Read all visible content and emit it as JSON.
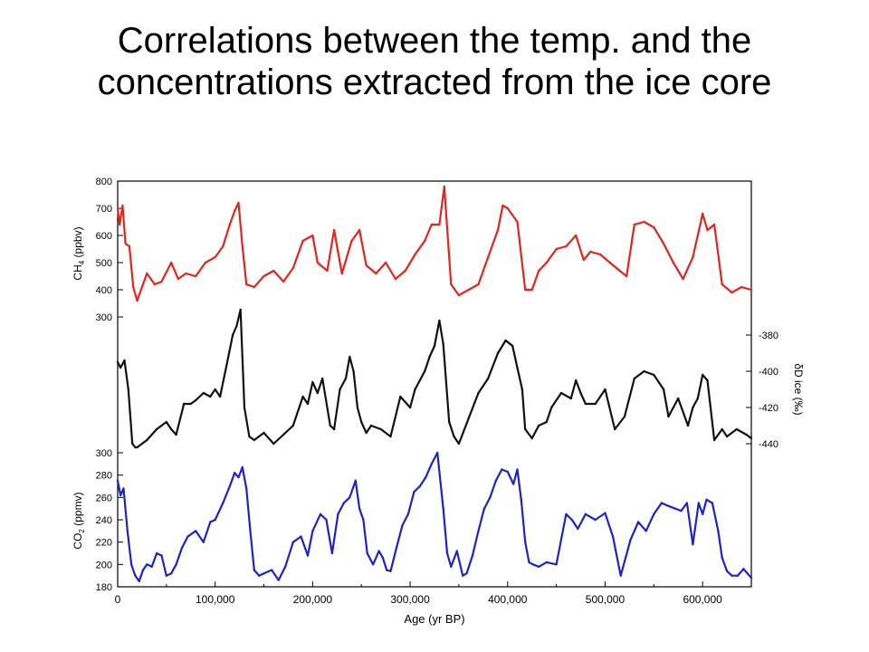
{
  "slide": {
    "title": "Correlations between the temp. and the concentrations extracted from the ice core"
  },
  "chart_data": [
    {
      "type": "line",
      "name": "ch4-panel",
      "ylabel_main": "CH",
      "ylabel_sub": "4",
      "ylabel_unit": " (ppbv)",
      "ylim": [
        300,
        800
      ],
      "yticks": [
        800,
        700,
        600,
        500,
        400,
        300
      ],
      "color": "#e8231e",
      "x": [
        0,
        2,
        5,
        8,
        12,
        16,
        20,
        25,
        30,
        38,
        45,
        55,
        62,
        70,
        80,
        90,
        100,
        108,
        115,
        120,
        124,
        128,
        132,
        140,
        150,
        160,
        170,
        180,
        190,
        200,
        205,
        215,
        222,
        230,
        240,
        248,
        255,
        265,
        275,
        285,
        295,
        305,
        315,
        322,
        330,
        335,
        342,
        350,
        360,
        370,
        380,
        390,
        395,
        400,
        410,
        418,
        425,
        432,
        440,
        450,
        460,
        470,
        478,
        485,
        495,
        505,
        515,
        522,
        530,
        540,
        550,
        560,
        570,
        580,
        590,
        600,
        605,
        612,
        620,
        630,
        640,
        650
      ],
      "y": [
        700,
        640,
        710,
        570,
        560,
        410,
        360,
        410,
        460,
        420,
        430,
        500,
        440,
        460,
        450,
        500,
        520,
        560,
        640,
        690,
        720,
        560,
        420,
        410,
        450,
        470,
        430,
        480,
        580,
        600,
        500,
        470,
        620,
        460,
        580,
        620,
        490,
        460,
        500,
        440,
        470,
        530,
        580,
        640,
        640,
        780,
        420,
        380,
        400,
        420,
        520,
        620,
        710,
        700,
        650,
        400,
        400,
        470,
        500,
        550,
        560,
        600,
        510,
        540,
        530,
        500,
        470,
        450,
        640,
        650,
        630,
        570,
        500,
        440,
        520,
        680,
        620,
        640,
        420,
        390,
        410,
        400
      ],
      "ylim_right": null
    },
    {
      "type": "line",
      "name": "deltaD-panel",
      "ylabel_right": "δD ice (‰)",
      "ylim": [
        -450,
        -370
      ],
      "yticks": [
        -380,
        -400,
        -420,
        -440
      ],
      "color": "#111111",
      "x": [
        0,
        3,
        7,
        11,
        15,
        18,
        20,
        30,
        40,
        50,
        55,
        60,
        68,
        75,
        80,
        88,
        95,
        100,
        105,
        112,
        118,
        122,
        126,
        130,
        135,
        140,
        150,
        160,
        170,
        180,
        190,
        195,
        200,
        205,
        210,
        218,
        222,
        228,
        234,
        238,
        242,
        246,
        250,
        255,
        260,
        270,
        280,
        290,
        300,
        305,
        315,
        320,
        325,
        330,
        334,
        340,
        345,
        350,
        360,
        370,
        380,
        390,
        398,
        405,
        410,
        415,
        418,
        425,
        432,
        440,
        445,
        455,
        465,
        470,
        475,
        480,
        490,
        500,
        510,
        520,
        530,
        540,
        550,
        560,
        565,
        575,
        585,
        590,
        595,
        600,
        605,
        612,
        620,
        625,
        635,
        645,
        650
      ],
      "y": [
        -395,
        -398,
        -394,
        -410,
        -440,
        -442,
        -442,
        -438,
        -432,
        -428,
        -432,
        -435,
        -418,
        -418,
        -416,
        -412,
        -414,
        -410,
        -414,
        -396,
        -380,
        -375,
        -366,
        -420,
        -436,
        -438,
        -434,
        -440,
        -435,
        -430,
        -414,
        -418,
        -406,
        -412,
        -404,
        -430,
        -432,
        -410,
        -404,
        -392,
        -400,
        -420,
        -428,
        -434,
        -430,
        -432,
        -436,
        -414,
        -420,
        -410,
        -400,
        -392,
        -386,
        -372,
        -385,
        -428,
        -436,
        -440,
        -426,
        -412,
        -404,
        -390,
        -383,
        -386,
        -398,
        -410,
        -432,
        -437,
        -430,
        -428,
        -420,
        -412,
        -415,
        -405,
        -412,
        -418,
        -418,
        -410,
        -432,
        -425,
        -404,
        -400,
        -402,
        -410,
        -425,
        -415,
        -430,
        -420,
        -415,
        -402,
        -405,
        -438,
        -432,
        -436,
        -432,
        -435,
        -437
      ]
    },
    {
      "type": "line",
      "name": "co2-panel",
      "xlabel": "Age (yr BP)",
      "ylabel_main": "CO",
      "ylabel_sub": "2",
      "ylabel_unit": " (ppmv)",
      "xlim": [
        0,
        650000
      ],
      "xticks": [
        0,
        100000,
        200000,
        300000,
        400000,
        500000,
        600000
      ],
      "xtick_labels": [
        "0",
        "100,000",
        "200,000",
        "300,000",
        "400,000",
        "500,000",
        "600,000"
      ],
      "ylim": [
        180,
        300
      ],
      "yticks": [
        300,
        280,
        260,
        240,
        220,
        200,
        180
      ],
      "color": "#1f22cc",
      "x": [
        0,
        3,
        6,
        10,
        14,
        18,
        22,
        26,
        30,
        35,
        40,
        45,
        50,
        55,
        60,
        66,
        72,
        80,
        88,
        95,
        100,
        108,
        115,
        120,
        124,
        128,
        132,
        136,
        140,
        145,
        150,
        158,
        165,
        172,
        180,
        188,
        195,
        200,
        208,
        214,
        220,
        226,
        232,
        238,
        244,
        248,
        252,
        256,
        262,
        268,
        272,
        276,
        280,
        286,
        292,
        298,
        304,
        310,
        316,
        322,
        328,
        334,
        338,
        342,
        348,
        354,
        358,
        364,
        370,
        376,
        382,
        388,
        394,
        400,
        406,
        410,
        414,
        418,
        422,
        426,
        432,
        440,
        450,
        460,
        466,
        472,
        480,
        490,
        500,
        508,
        516,
        526,
        534,
        542,
        550,
        558,
        566,
        572,
        578,
        584,
        590,
        596,
        600,
        604,
        610,
        616,
        620,
        625,
        630,
        636,
        642,
        650
      ],
      "y": [
        275,
        262,
        268,
        230,
        200,
        190,
        185,
        195,
        200,
        198,
        210,
        208,
        190,
        192,
        200,
        215,
        225,
        230,
        220,
        238,
        240,
        255,
        270,
        282,
        278,
        287,
        268,
        230,
        195,
        190,
        192,
        195,
        186,
        198,
        220,
        225,
        208,
        230,
        245,
        240,
        210,
        245,
        255,
        260,
        275,
        250,
        240,
        210,
        200,
        212,
        206,
        195,
        194,
        215,
        235,
        245,
        265,
        270,
        278,
        290,
        300,
        250,
        210,
        198,
        212,
        190,
        192,
        208,
        230,
        250,
        260,
        275,
        285,
        283,
        272,
        285,
        258,
        220,
        202,
        200,
        198,
        202,
        200,
        245,
        240,
        232,
        245,
        240,
        246,
        225,
        190,
        222,
        238,
        230,
        245,
        255,
        252,
        250,
        248,
        255,
        218,
        255,
        245,
        258,
        255,
        230,
        206,
        194,
        190,
        190,
        196,
        188
      ]
    }
  ]
}
